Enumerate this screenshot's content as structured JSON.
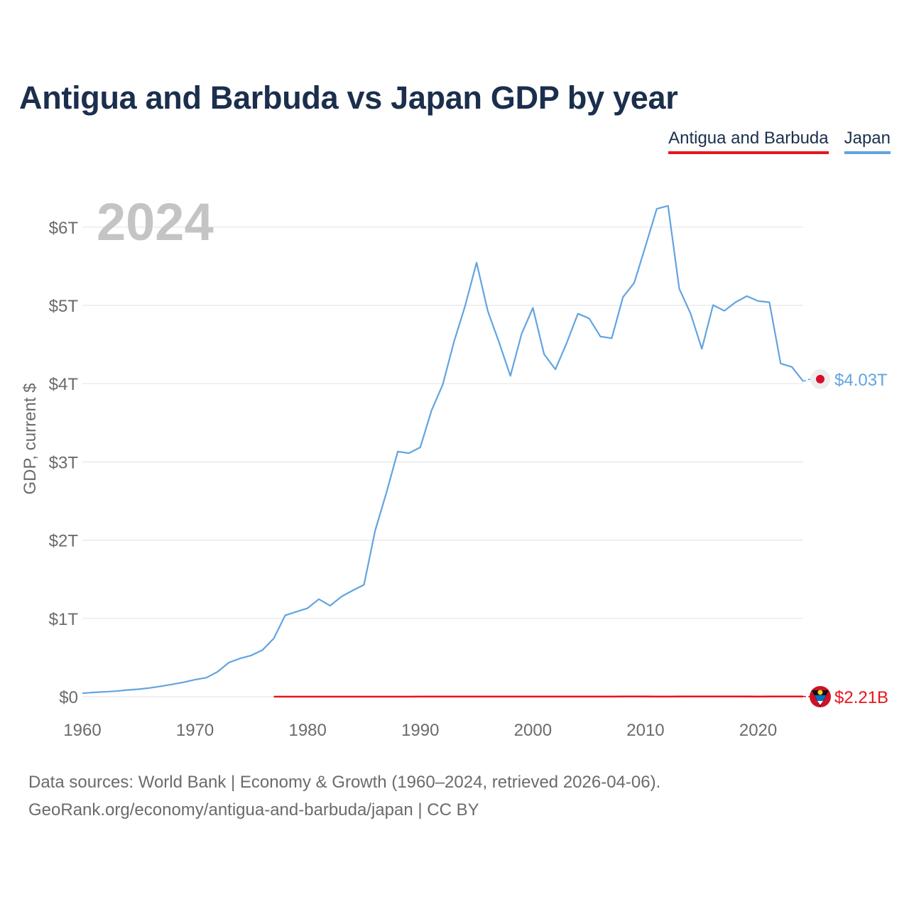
{
  "chart_data": {
    "type": "line",
    "title": "Antigua and Barbuda vs Japan GDP by year",
    "ylabel": "GDP, current $",
    "xlabel": "",
    "year_overlay": "2024",
    "xlim": [
      1960,
      2024
    ],
    "ylim": [
      0,
      6.5
    ],
    "x_ticks": [
      1960,
      1970,
      1980,
      1990,
      2000,
      2010,
      2020
    ],
    "y_ticks": [
      {
        "value": 0,
        "label": "$0"
      },
      {
        "value": 1,
        "label": "$1T"
      },
      {
        "value": 2,
        "label": "$2T"
      },
      {
        "value": 3,
        "label": "$3T"
      },
      {
        "value": 4,
        "label": "$4T"
      },
      {
        "value": 5,
        "label": "$5T"
      },
      {
        "value": 6,
        "label": "$6T"
      }
    ],
    "units": "trillions of current US$",
    "series": [
      {
        "name": "Antigua and Barbuda",
        "color": "#e8141c",
        "end_label": "$2.21B",
        "start_year": 1977,
        "values": [
          8e-05,
          0.0001,
          0.00012,
          0.00013,
          0.00015,
          0.00018,
          0.0002,
          0.00024,
          0.00027,
          0.00032,
          0.00036,
          0.00039,
          0.00043,
          0.00047,
          0.00048,
          0.00051,
          0.00052,
          0.00054,
          0.00059,
          0.00063,
          0.00066,
          0.00071,
          0.00078,
          0.00085,
          0.00091,
          0.00099,
          0.00108,
          0.00114,
          0.00121,
          0.00128,
          0.00135,
          0.00148,
          0.00155,
          0.00164,
          0.00134,
          0.00128,
          0.00139,
          0.00149,
          0.00155,
          0.00164,
          0.00172,
          0.00178,
          0.0016,
          0.00133,
          0.00172,
          0.00195,
          0.00204,
          0.00221
        ]
      },
      {
        "name": "Japan",
        "color": "#62a4e0",
        "end_label": "$4.03T",
        "start_year": 1960,
        "values": [
          0.044,
          0.054,
          0.062,
          0.071,
          0.085,
          0.095,
          0.112,
          0.133,
          0.158,
          0.184,
          0.217,
          0.242,
          0.318,
          0.436,
          0.488,
          0.527,
          0.597,
          0.745,
          1.038,
          1.085,
          1.131,
          1.246,
          1.162,
          1.279,
          1.357,
          1.429,
          2.123,
          2.608,
          3.132,
          3.112,
          3.186,
          3.655,
          3.989,
          4.539,
          5.001,
          5.546,
          4.927,
          4.525,
          4.099,
          4.636,
          4.968,
          4.375,
          4.182,
          4.52,
          4.894,
          4.833,
          4.602,
          4.58,
          5.106,
          5.289,
          5.759,
          6.233,
          6.272,
          5.212,
          4.897,
          4.445,
          5.004,
          4.931,
          5.041,
          5.118,
          5.055,
          5.04,
          4.257,
          4.213,
          4.03
        ]
      }
    ]
  },
  "legend": [
    {
      "label": "Antigua and Barbuda",
      "color": "#e8141c"
    },
    {
      "label": "Japan",
      "color": "#62a4e0"
    }
  ],
  "footer": {
    "line1": "Data sources: World Bank | Economy & Growth (1960–2024, retrieved 2026-04-06).",
    "line2": "GeoRank.org/economy/antigua-and-barbuda/japan | CC BY"
  }
}
